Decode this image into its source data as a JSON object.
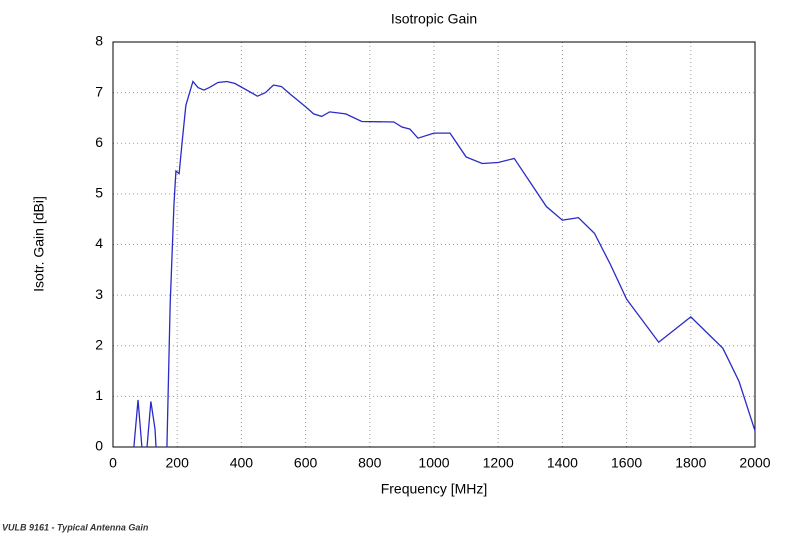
{
  "chart_data": {
    "type": "line",
    "title": "Isotropic Gain",
    "x_label": "Frequency [MHz]",
    "y_label": "Isotr. Gain [dBi]",
    "x": [
      65,
      78,
      90,
      98,
      106,
      118,
      131,
      134,
      150,
      168,
      178,
      190,
      196,
      206,
      215,
      227,
      249,
      265,
      283,
      300,
      327,
      355,
      380,
      450,
      475,
      500,
      525,
      550,
      600,
      625,
      650,
      675,
      725,
      775,
      875,
      900,
      925,
      950,
      1000,
      1050,
      1100,
      1150,
      1200,
      1250,
      1350,
      1400,
      1450,
      1500,
      1550,
      1600,
      1700,
      1800,
      1900,
      1950,
      2000
    ],
    "series": [
      {
        "name": "Isotropic Gain",
        "color": "#2a2ac8",
        "values": [
          0,
          0.93,
          0,
          null,
          0,
          0.9,
          0.35,
          0,
          null,
          0,
          2.8,
          4.8,
          5.45,
          5.4,
          6.0,
          6.75,
          7.22,
          7.1,
          7.05,
          7.1,
          7.2,
          7.22,
          7.18,
          6.93,
          7.0,
          7.15,
          7.12,
          6.98,
          6.72,
          6.58,
          6.53,
          6.62,
          6.58,
          6.43,
          6.42,
          6.32,
          6.28,
          6.1,
          6.2,
          6.2,
          5.73,
          5.6,
          5.62,
          5.7,
          4.75,
          4.48,
          4.53,
          4.22,
          3.6,
          2.92,
          2.07,
          2.57,
          1.95,
          1.3,
          0.32
        ]
      }
    ],
    "xlim": [
      0,
      2000
    ],
    "xticks": [
      0,
      200,
      400,
      600,
      800,
      1000,
      1200,
      1400,
      1600,
      1800,
      2000
    ],
    "ylim": [
      0,
      8
    ],
    "yticks": [
      0,
      1,
      2,
      3,
      4,
      5,
      6,
      7,
      8
    ],
    "grid": true
  },
  "caption": "VULB 9161 - Typical Antenna Gain"
}
